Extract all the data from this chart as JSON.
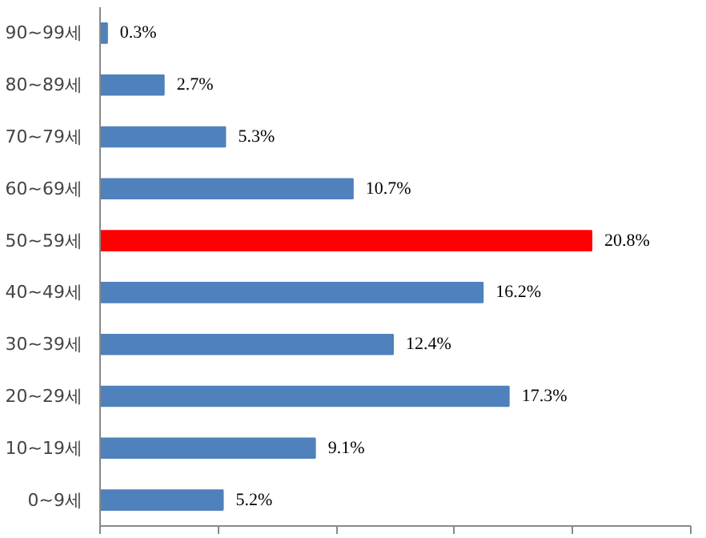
{
  "chart_data": {
    "type": "bar",
    "orientation": "horizontal",
    "categories": [
      "90~99세",
      "80~89세",
      "70~79세",
      "60~69세",
      "50~59세",
      "40~49세",
      "30~39세",
      "20~29세",
      "10~19세",
      "0~9세"
    ],
    "values": [
      0.3,
      2.7,
      5.3,
      10.7,
      20.8,
      16.2,
      12.4,
      17.3,
      9.1,
      5.2
    ],
    "value_labels": [
      "0.3%",
      "2.7%",
      "5.3%",
      "10.7%",
      "20.8%",
      "16.2%",
      "12.4%",
      "17.3%",
      "9.1%",
      "5.2%"
    ],
    "colors": [
      "#4f81bd",
      "#4f81bd",
      "#4f81bd",
      "#4f81bd",
      "#ff0000",
      "#4f81bd",
      "#4f81bd",
      "#4f81bd",
      "#4f81bd",
      "#4f81bd"
    ],
    "xlim": [
      0,
      25
    ],
    "grid": false,
    "legend": false,
    "xticks": [
      {
        "value": 0,
        "label": null
      },
      {
        "value": 5,
        "label": null
      },
      {
        "value": 10,
        "label": null
      },
      {
        "value": 15,
        "label": null
      },
      {
        "value": 20,
        "label": null
      },
      {
        "value": 25,
        "label": null
      }
    ],
    "data_labels": true,
    "tick_labels": "y"
  }
}
